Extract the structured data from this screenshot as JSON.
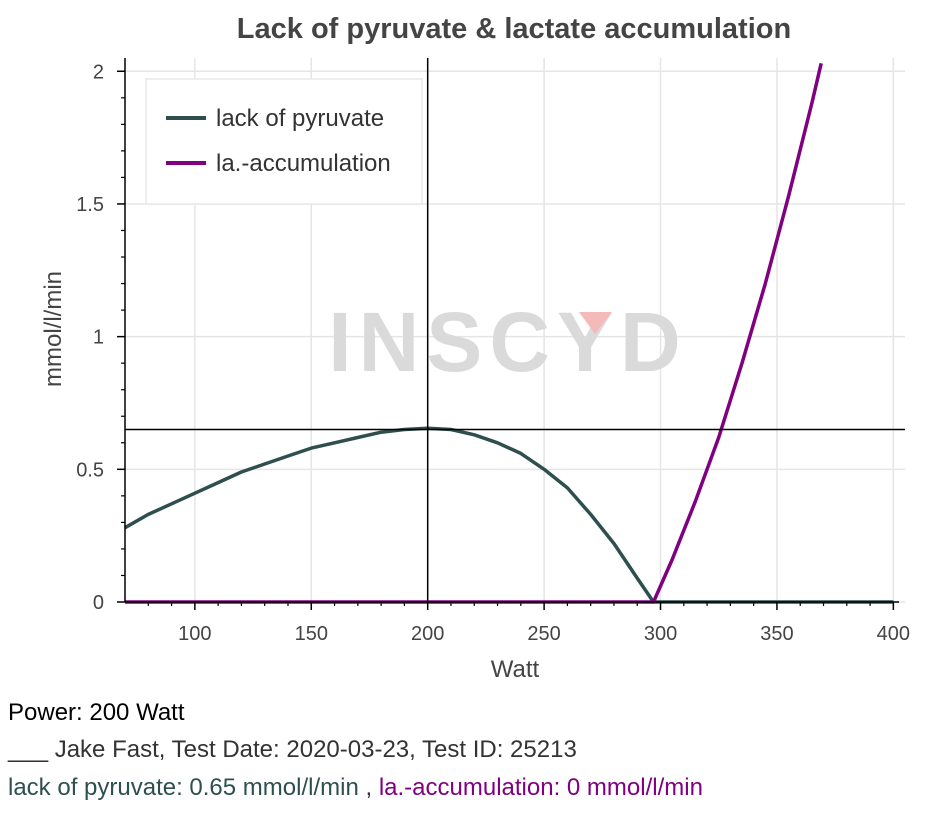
{
  "chart_data": {
    "type": "line",
    "title": "Lack of pyruvate & lactate accumulation",
    "xlabel": "Watt",
    "ylabel": "mmol/l/min",
    "xlim": [
      70,
      405
    ],
    "ylim": [
      0,
      2.05
    ],
    "x_ticks": [
      100,
      150,
      200,
      250,
      300,
      350,
      400
    ],
    "x_tick_labels": [
      "100",
      "150",
      "200",
      "250",
      "300",
      "350",
      "400"
    ],
    "y_ticks": [
      0,
      0.5,
      1,
      1.5,
      2
    ],
    "y_tick_labels": [
      "0",
      "0.5",
      "1",
      "1.5",
      "2"
    ],
    "grid": true,
    "legend_position": "top-left",
    "watermark": "INSCYD",
    "crosshair": {
      "x": 200,
      "y": 0.65
    },
    "series": [
      {
        "name": "lack of pyruvate",
        "color": "#2f4f4f",
        "x": [
          70,
          80,
          90,
          100,
          110,
          120,
          130,
          140,
          150,
          160,
          170,
          180,
          190,
          200,
          210,
          220,
          230,
          240,
          250,
          260,
          270,
          280,
          290,
          297,
          300,
          320,
          340,
          360,
          380,
          400
        ],
        "y": [
          0.28,
          0.33,
          0.37,
          0.41,
          0.45,
          0.49,
          0.52,
          0.55,
          0.58,
          0.6,
          0.62,
          0.64,
          0.65,
          0.655,
          0.65,
          0.63,
          0.6,
          0.56,
          0.5,
          0.43,
          0.33,
          0.22,
          0.09,
          0,
          0,
          0,
          0,
          0,
          0,
          0
        ]
      },
      {
        "name": "la.-accumulation",
        "color": "#800080",
        "x": [
          70,
          100,
          150,
          200,
          250,
          297,
          305,
          315,
          325,
          335,
          345,
          355,
          365,
          369
        ],
        "y": [
          0,
          0,
          0,
          0,
          0,
          0,
          0.16,
          0.38,
          0.62,
          0.9,
          1.2,
          1.53,
          1.88,
          2.03
        ]
      }
    ]
  },
  "info": {
    "power": "Power: 200 Watt",
    "athlete": "___ Jake Fast, Test Date: 2020-03-23, Test ID: 25213",
    "pyruvate_value": "lack of pyruvate: 0.65 mmol/l/min",
    "separator": ",",
    "lactate_value": "la.-accumulation: 0 mmol/l/min"
  }
}
